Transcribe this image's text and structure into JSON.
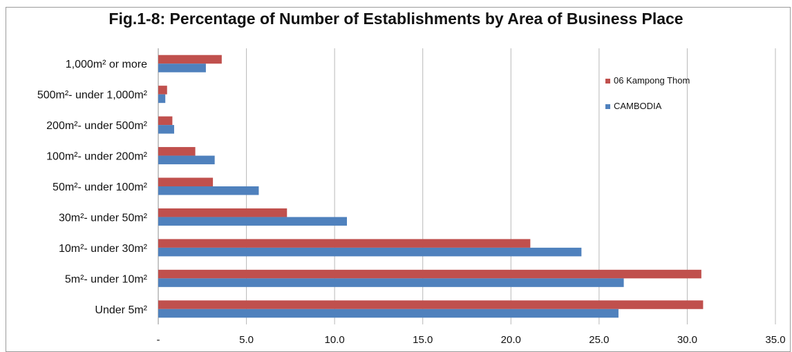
{
  "chart_data": {
    "type": "bar",
    "orientation": "horizontal",
    "title": "Fig.1-8: Percentage of Number of Establishments by Area of Business Place",
    "categories": [
      "1,000m² or more",
      "500m²- under 1,000m²",
      "200m²- under 500m²",
      "100m²- under 200m²",
      "50m²- under 100m²",
      "30m²- under 50m²",
      "10m²- under 30m²",
      "5m²- under 10m²",
      "Under 5m²"
    ],
    "series": [
      {
        "name": "06 Kampong Thom",
        "color": "#c0504d",
        "values": [
          3.6,
          0.5,
          0.8,
          2.1,
          3.1,
          7.3,
          21.1,
          30.8,
          30.9
        ]
      },
      {
        "name": "CAMBODIA",
        "color": "#4f81bd",
        "values": [
          2.7,
          0.4,
          0.9,
          3.2,
          5.7,
          10.7,
          24.0,
          26.4,
          26.1
        ]
      }
    ],
    "xlim": [
      0,
      35
    ],
    "x_ticks": [
      0,
      5,
      10,
      15,
      20,
      25,
      30,
      35
    ],
    "x_tick_labels": [
      "-",
      "5.0",
      "10.0",
      "15.0",
      "20.0",
      "25.0",
      "30.0",
      "35.0"
    ],
    "grid": "vertical",
    "legend": {
      "placement": "top-right"
    }
  }
}
